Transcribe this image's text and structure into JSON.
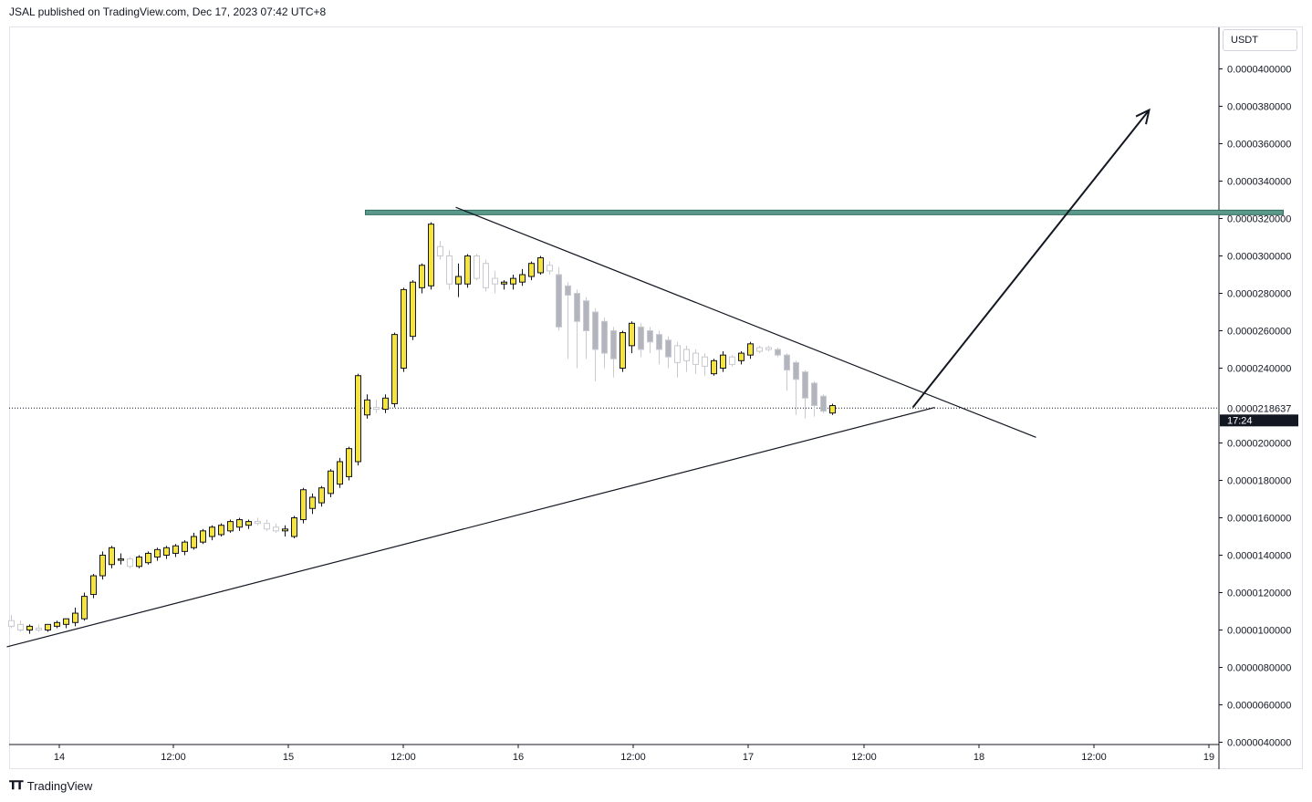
{
  "header": {
    "text": "JSAL published on TradingView.com, Dec 17, 2023 07:42 UTC+8"
  },
  "currency": "USDT",
  "footer": {
    "logo_icon": "tradingview-logo-icon",
    "brand": "TradingView"
  },
  "colors": {
    "bull_fill": "#f5e33f",
    "bear_fill": "#b2b5be",
    "resistance_zone": "#5b9a8b",
    "line": "#131722",
    "price_label_bg": "#131722"
  },
  "chart_data": {
    "type": "candlestick",
    "x_axis": {
      "ticks": [
        "14",
        "12:00",
        "15",
        "12:00",
        "16",
        "12:00",
        "17",
        "12:00",
        "18",
        "12:00",
        "19"
      ]
    },
    "y_axis": {
      "range": [
        4e-06,
        4.2e-05
      ],
      "ticks": [
        "0.0000400000",
        "0.0000380000",
        "0.0000360000",
        "0.0000340000",
        "0.0000320000",
        "0.0000300000",
        "0.0000280000",
        "0.0000260000",
        "0.0000240000",
        "0.0000200000",
        "0.0000180000",
        "0.0000160000",
        "0.0000140000",
        "0.0000120000",
        "0.0000100000",
        "0.0000080000",
        "0.0000060000",
        "0.0000040000"
      ]
    },
    "current_price": {
      "label": "0.0000218637",
      "value": 2.18637e-05,
      "countdown": "17:24"
    },
    "candles": [
      {
        "o": 10.5,
        "h": 10.8,
        "l": 10.1,
        "c": 10.2
      },
      {
        "o": 10.3,
        "h": 10.5,
        "l": 9.9,
        "c": 10.0
      },
      {
        "o": 10.0,
        "h": 10.3,
        "l": 9.8,
        "c": 10.2
      },
      {
        "o": 10.1,
        "h": 10.3,
        "l": 9.9,
        "c": 10.0
      },
      {
        "o": 10.0,
        "h": 10.3,
        "l": 9.9,
        "c": 10.3
      },
      {
        "o": 10.2,
        "h": 10.5,
        "l": 10.1,
        "c": 10.4
      },
      {
        "o": 10.3,
        "h": 10.6,
        "l": 10.1,
        "c": 10.6
      },
      {
        "o": 10.4,
        "h": 11.2,
        "l": 10.2,
        "c": 10.9
      },
      {
        "o": 10.6,
        "h": 12.0,
        "l": 10.5,
        "c": 11.8
      },
      {
        "o": 11.9,
        "h": 13.0,
        "l": 11.7,
        "c": 12.9
      },
      {
        "o": 12.9,
        "h": 14.2,
        "l": 12.7,
        "c": 14.0
      },
      {
        "o": 13.5,
        "h": 14.5,
        "l": 13.3,
        "c": 14.4
      },
      {
        "o": 13.8,
        "h": 14.1,
        "l": 13.5,
        "c": 13.8
      },
      {
        "o": 13.8,
        "h": 13.9,
        "l": 13.3,
        "c": 13.4
      },
      {
        "o": 13.4,
        "h": 14.0,
        "l": 13.3,
        "c": 13.9
      },
      {
        "o": 13.6,
        "h": 14.2,
        "l": 13.5,
        "c": 14.1
      },
      {
        "o": 13.9,
        "h": 14.4,
        "l": 13.7,
        "c": 14.3
      },
      {
        "o": 14.0,
        "h": 14.5,
        "l": 13.8,
        "c": 14.4
      },
      {
        "o": 14.1,
        "h": 14.6,
        "l": 13.9,
        "c": 14.5
      },
      {
        "o": 14.2,
        "h": 14.8,
        "l": 14.0,
        "c": 14.7
      },
      {
        "o": 14.4,
        "h": 15.2,
        "l": 14.3,
        "c": 15.0
      },
      {
        "o": 14.7,
        "h": 15.4,
        "l": 14.6,
        "c": 15.3
      },
      {
        "o": 15.0,
        "h": 15.6,
        "l": 14.8,
        "c": 15.5
      },
      {
        "o": 15.1,
        "h": 15.7,
        "l": 15.0,
        "c": 15.6
      },
      {
        "o": 15.3,
        "h": 15.9,
        "l": 15.2,
        "c": 15.8
      },
      {
        "o": 15.5,
        "h": 16.0,
        "l": 15.3,
        "c": 15.9
      },
      {
        "o": 15.6,
        "h": 15.9,
        "l": 15.4,
        "c": 15.8
      },
      {
        "o": 15.8,
        "h": 16.0,
        "l": 15.6,
        "c": 15.7
      },
      {
        "o": 15.7,
        "h": 15.9,
        "l": 15.3,
        "c": 15.4
      },
      {
        "o": 15.5,
        "h": 15.7,
        "l": 15.2,
        "c": 15.3
      },
      {
        "o": 15.3,
        "h": 15.6,
        "l": 15.0,
        "c": 15.4
      },
      {
        "o": 15.0,
        "h": 16.1,
        "l": 14.9,
        "c": 16.0
      },
      {
        "o": 15.9,
        "h": 17.6,
        "l": 15.7,
        "c": 17.5
      },
      {
        "o": 16.5,
        "h": 17.3,
        "l": 16.2,
        "c": 17.1
      },
      {
        "o": 16.8,
        "h": 17.7,
        "l": 16.6,
        "c": 17.6
      },
      {
        "o": 17.3,
        "h": 18.6,
        "l": 17.1,
        "c": 18.5
      },
      {
        "o": 17.8,
        "h": 19.2,
        "l": 17.6,
        "c": 19.0
      },
      {
        "o": 18.2,
        "h": 19.8,
        "l": 18.0,
        "c": 19.7
      },
      {
        "o": 19.0,
        "h": 23.7,
        "l": 18.8,
        "c": 23.6
      },
      {
        "o": 21.5,
        "h": 22.6,
        "l": 21.3,
        "c": 22.3
      },
      {
        "o": 21.9,
        "h": 22.3,
        "l": 21.6,
        "c": 21.8
      },
      {
        "o": 21.8,
        "h": 22.6,
        "l": 21.6,
        "c": 22.4
      },
      {
        "o": 22.1,
        "h": 25.9,
        "l": 21.9,
        "c": 25.8
      },
      {
        "o": 24.0,
        "h": 28.3,
        "l": 23.8,
        "c": 28.2
      },
      {
        "o": 25.7,
        "h": 28.7,
        "l": 25.5,
        "c": 28.6
      },
      {
        "o": 28.3,
        "h": 29.6,
        "l": 28.0,
        "c": 29.5
      },
      {
        "o": 28.4,
        "h": 31.8,
        "l": 28.2,
        "c": 31.7
      },
      {
        "o": 30.5,
        "h": 30.8,
        "l": 29.8,
        "c": 30.0
      },
      {
        "o": 30.0,
        "h": 30.3,
        "l": 28.2,
        "c": 28.5
      },
      {
        "o": 28.5,
        "h": 29.6,
        "l": 27.8,
        "c": 28.9
      },
      {
        "o": 28.5,
        "h": 30.1,
        "l": 28.3,
        "c": 30.0
      },
      {
        "o": 30.0,
        "h": 30.1,
        "l": 28.7,
        "c": 28.8
      },
      {
        "o": 29.6,
        "h": 29.8,
        "l": 28.1,
        "c": 28.3
      },
      {
        "o": 28.8,
        "h": 29.2,
        "l": 28.0,
        "c": 28.5
      },
      {
        "o": 28.5,
        "h": 28.7,
        "l": 28.2,
        "c": 28.6
      },
      {
        "o": 28.5,
        "h": 29.0,
        "l": 28.2,
        "c": 28.8
      },
      {
        "o": 28.6,
        "h": 29.3,
        "l": 28.4,
        "c": 29.0
      },
      {
        "o": 28.9,
        "h": 29.7,
        "l": 28.7,
        "c": 29.6
      },
      {
        "o": 29.1,
        "h": 30.0,
        "l": 29.0,
        "c": 29.9
      },
      {
        "o": 29.5,
        "h": 29.7,
        "l": 29.0,
        "c": 29.2
      },
      {
        "o": 29.0,
        "h": 29.4,
        "l": 26.0,
        "c": 26.2
      },
      {
        "o": 28.4,
        "h": 28.6,
        "l": 24.5,
        "c": 27.9
      },
      {
        "o": 28.0,
        "h": 28.2,
        "l": 24.0,
        "c": 26.5
      },
      {
        "o": 27.6,
        "h": 27.8,
        "l": 24.5,
        "c": 26.0
      },
      {
        "o": 27.0,
        "h": 27.2,
        "l": 23.3,
        "c": 25.0
      },
      {
        "o": 26.5,
        "h": 26.7,
        "l": 24.0,
        "c": 24.8
      },
      {
        "o": 26.0,
        "h": 26.2,
        "l": 23.5,
        "c": 24.5
      },
      {
        "o": 24.0,
        "h": 26.0,
        "l": 23.8,
        "c": 25.9
      },
      {
        "o": 25.2,
        "h": 26.5,
        "l": 24.8,
        "c": 26.4
      },
      {
        "o": 26.2,
        "h": 26.4,
        "l": 24.6,
        "c": 25.0
      },
      {
        "o": 26.0,
        "h": 26.2,
        "l": 24.8,
        "c": 25.4
      },
      {
        "o": 25.8,
        "h": 26.0,
        "l": 24.2,
        "c": 25.0
      },
      {
        "o": 25.5,
        "h": 25.7,
        "l": 24.0,
        "c": 24.6
      },
      {
        "o": 25.2,
        "h": 25.4,
        "l": 23.5,
        "c": 24.3
      },
      {
        "o": 25.0,
        "h": 25.2,
        "l": 23.8,
        "c": 24.4
      },
      {
        "o": 24.8,
        "h": 25.0,
        "l": 23.7,
        "c": 24.2
      },
      {
        "o": 24.6,
        "h": 24.8,
        "l": 23.6,
        "c": 24.1
      },
      {
        "o": 23.7,
        "h": 24.5,
        "l": 23.6,
        "c": 24.4
      },
      {
        "o": 24.0,
        "h": 24.9,
        "l": 23.8,
        "c": 24.7
      },
      {
        "o": 24.6,
        "h": 24.7,
        "l": 24.1,
        "c": 24.2
      },
      {
        "o": 24.4,
        "h": 24.9,
        "l": 24.2,
        "c": 24.8
      },
      {
        "o": 24.7,
        "h": 25.4,
        "l": 24.5,
        "c": 25.3
      },
      {
        "o": 25.1,
        "h": 25.2,
        "l": 24.8,
        "c": 24.9
      },
      {
        "o": 25.1,
        "h": 25.2,
        "l": 24.9,
        "c": 25.0
      },
      {
        "o": 25.0,
        "h": 25.1,
        "l": 24.6,
        "c": 24.7
      },
      {
        "o": 24.7,
        "h": 24.8,
        "l": 22.8,
        "c": 23.9
      },
      {
        "o": 24.3,
        "h": 24.4,
        "l": 21.5,
        "c": 23.4
      },
      {
        "o": 23.8,
        "h": 23.9,
        "l": 21.3,
        "c": 22.4
      },
      {
        "o": 23.2,
        "h": 23.3,
        "l": 21.4,
        "c": 22.0
      },
      {
        "o": 22.5,
        "h": 22.6,
        "l": 21.6,
        "c": 21.7
      },
      {
        "o": 21.6,
        "h": 22.1,
        "l": 21.5,
        "c": 22.0
      }
    ],
    "trendlines": [
      {
        "name": "support",
        "from": [
          -0.5,
          9.1
        ],
        "to": [
          101.2,
          21.9
        ]
      },
      {
        "name": "descending-resistance",
        "from": [
          48.7,
          32.6
        ],
        "to": [
          112.3,
          20.3
        ]
      },
      {
        "name": "projection-arrow",
        "from": [
          98.8,
          21.9
        ],
        "to": [
          124.7,
          37.8
        ]
      }
    ],
    "resistance_zone": {
      "from": 38.8,
      "to": 139.4,
      "price": 32.3
    }
  }
}
